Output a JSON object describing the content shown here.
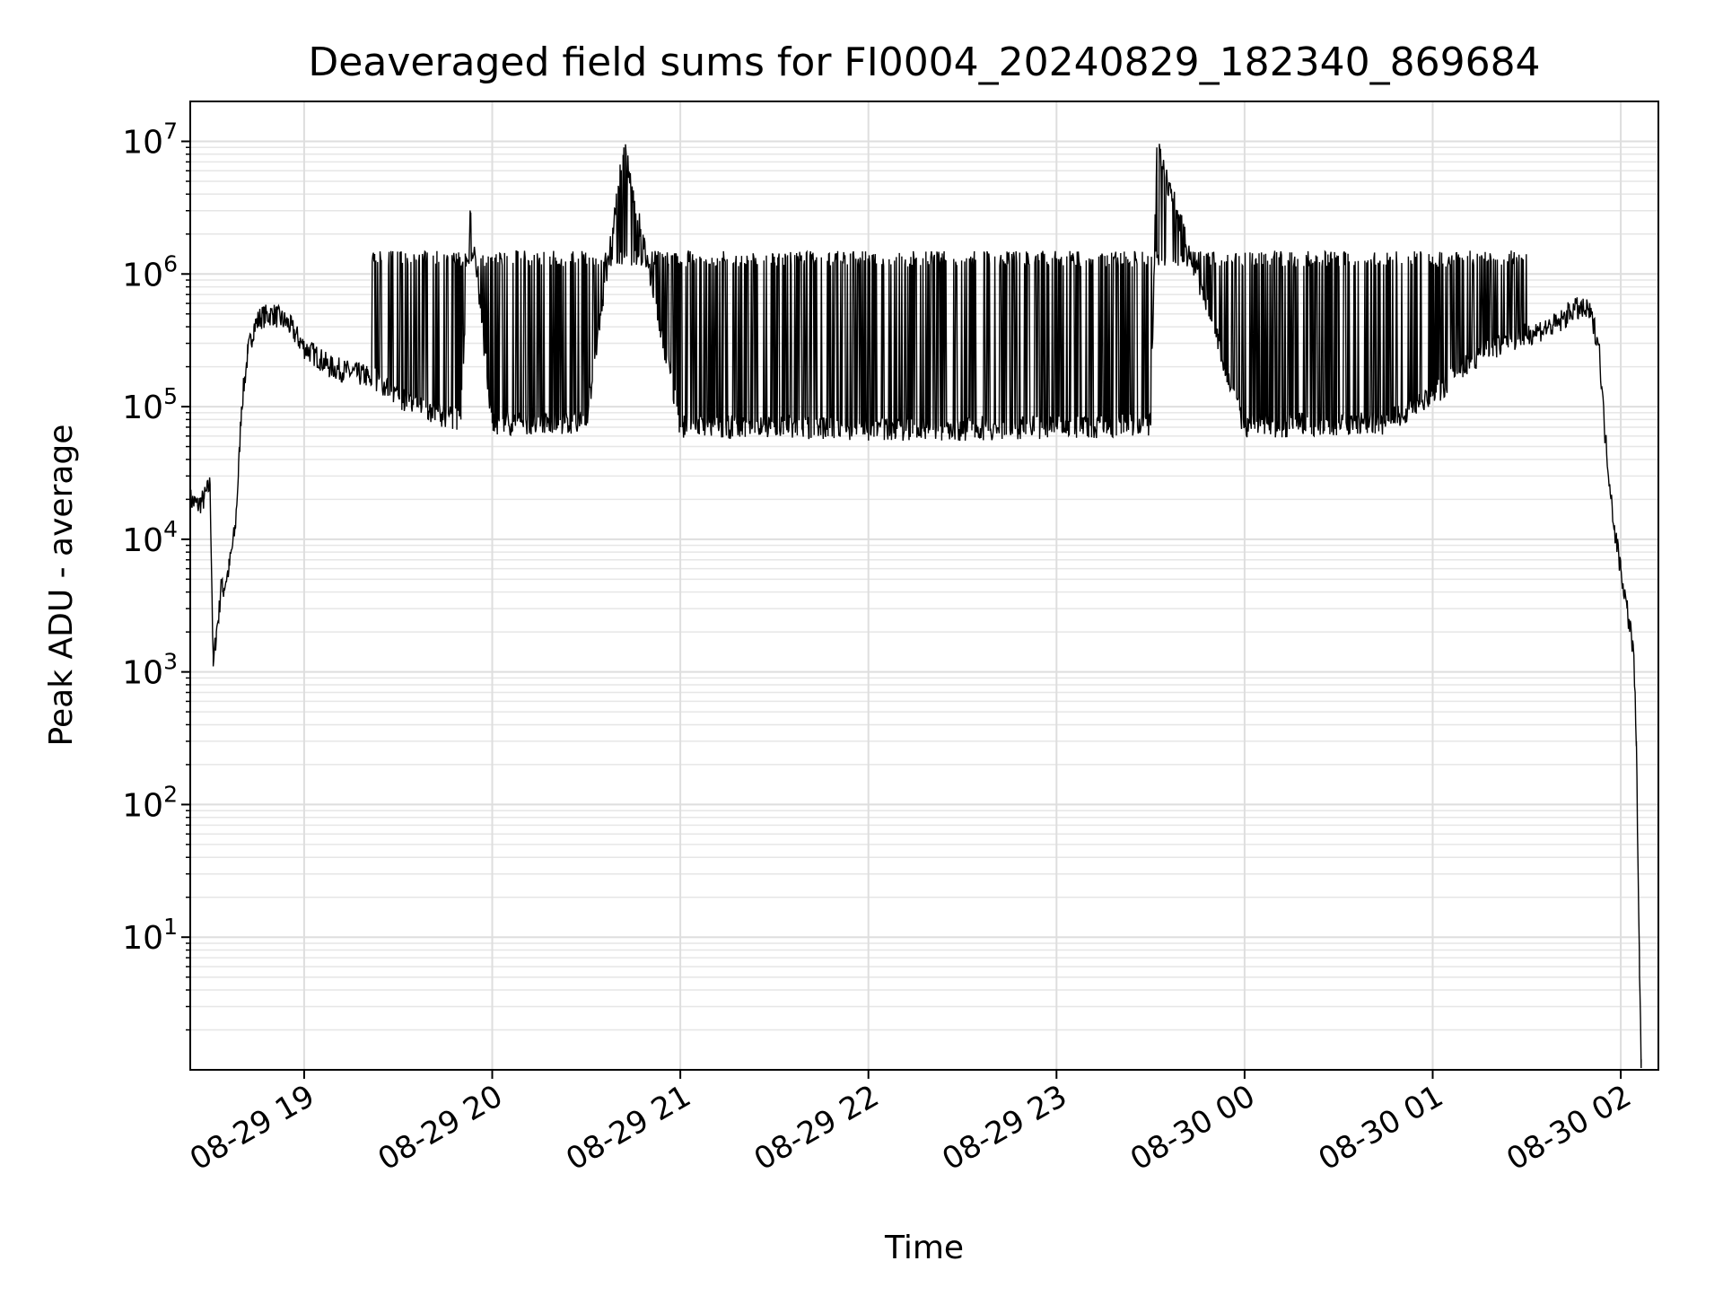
{
  "chart_data": {
    "type": "line",
    "title": "Deaveraged field sums for FI0004_20240829_182340_869684",
    "xlabel": "Time",
    "ylabel": "Peak ADU - average",
    "yscale": "log",
    "ylim": [
      1,
      20000000
    ],
    "xlim": [
      "2024-08-29 18:23:40",
      "2024-08-30 02:12:00"
    ],
    "x_ticks": [
      {
        "value": "2024-08-29 19:00",
        "label": "08-29 19"
      },
      {
        "value": "2024-08-29 20:00",
        "label": "08-29 20"
      },
      {
        "value": "2024-08-29 21:00",
        "label": "08-29 21"
      },
      {
        "value": "2024-08-29 22:00",
        "label": "08-29 22"
      },
      {
        "value": "2024-08-29 23:00",
        "label": "08-29 23"
      },
      {
        "value": "2024-08-30 00:00",
        "label": "08-30 00"
      },
      {
        "value": "2024-08-30 01:00",
        "label": "08-30 01"
      },
      {
        "value": "2024-08-30 02:00",
        "label": "08-30 02"
      }
    ],
    "y_ticks": [
      {
        "value": 10,
        "base": "10",
        "exp": "1"
      },
      {
        "value": 100,
        "base": "10",
        "exp": "2"
      },
      {
        "value": 1000,
        "base": "10",
        "exp": "3"
      },
      {
        "value": 10000,
        "base": "10",
        "exp": "4"
      },
      {
        "value": 100000,
        "base": "10",
        "exp": "5"
      },
      {
        "value": 1000000,
        "base": "10",
        "exp": "6"
      },
      {
        "value": 10000000,
        "base": "10",
        "exp": "7"
      }
    ],
    "grid": true,
    "series": [
      {
        "color": "#000000",
        "x": [
          "2024-08-29 18:23:40",
          "2024-08-29 18:26:00",
          "2024-08-29 18:28:00",
          "2024-08-29 18:30:00",
          "2024-08-29 18:31:00",
          "2024-08-29 18:32:00",
          "2024-08-29 18:33:00",
          "2024-08-29 18:33:30",
          "2024-08-29 18:34:00",
          "2024-08-29 18:36:00",
          "2024-08-29 18:38:00",
          "2024-08-29 18:39:00",
          "2024-08-29 18:40:00",
          "2024-08-29 18:42:00",
          "2024-08-29 18:44:00",
          "2024-08-29 18:46:00",
          "2024-08-29 18:50:00",
          "2024-08-29 18:55:00",
          "2024-08-29 19:00:00",
          "2024-08-29 19:05:00",
          "2024-08-29 19:08:00",
          "2024-08-29 19:15:00",
          "2024-08-29 19:20:00",
          "2024-08-29 19:23:00",
          "2024-08-29 19:30:00",
          "2024-08-29 19:40:00",
          "2024-08-29 19:50:00",
          "2024-08-29 19:53:00",
          "2024-08-29 20:00:00",
          "2024-08-29 20:30:00",
          "2024-08-29 20:42:00",
          "2024-08-29 21:00:00",
          "2024-08-29 21:30:00",
          "2024-08-29 22:00:00",
          "2024-08-29 22:30:00",
          "2024-08-29 23:00:00",
          "2024-08-29 23:30:00",
          "2024-08-29 23:32:00",
          "2024-08-30 00:00:00",
          "2024-08-30 00:30:00",
          "2024-08-30 00:45:00",
          "2024-08-30 01:00:00",
          "2024-08-30 01:15:00",
          "2024-08-30 01:30:00",
          "2024-08-30 01:40:00",
          "2024-08-30 01:45:00",
          "2024-08-30 01:50:00",
          "2024-08-30 01:53:00",
          "2024-08-30 01:55:00",
          "2024-08-30 01:58:00",
          "2024-08-30 02:00:00",
          "2024-08-30 02:02:00",
          "2024-08-30 02:04:00",
          "2024-08-30 02:05:00",
          "2024-08-30 02:06:00",
          "2024-08-30 02:06:30"
        ],
        "y": [
          20000,
          18000,
          20000,
          26000,
          1100,
          2000,
          3000,
          5000,
          4000,
          6000,
          12000,
          30000,
          100000,
          250000,
          400000,
          470000,
          500000,
          420000,
          280000,
          230000,
          200000,
          180000,
          170000,
          160000,
          120000,
          90000,
          80000,
          2900000,
          75000,
          75000,
          9000000,
          70000,
          70000,
          68000,
          68000,
          70000,
          72000,
          9000000,
          70000,
          75000,
          75000,
          120000,
          250000,
          350000,
          420000,
          550000,
          520000,
          300000,
          60000,
          12000,
          6000,
          3000,
          1500,
          300,
          5,
          1.2
        ]
      }
    ],
    "spikes": {
      "x_start": "2024-08-29 19:20:00",
      "x_end": "2024-08-30 01:30:00",
      "ceiling": 1500000
    }
  }
}
